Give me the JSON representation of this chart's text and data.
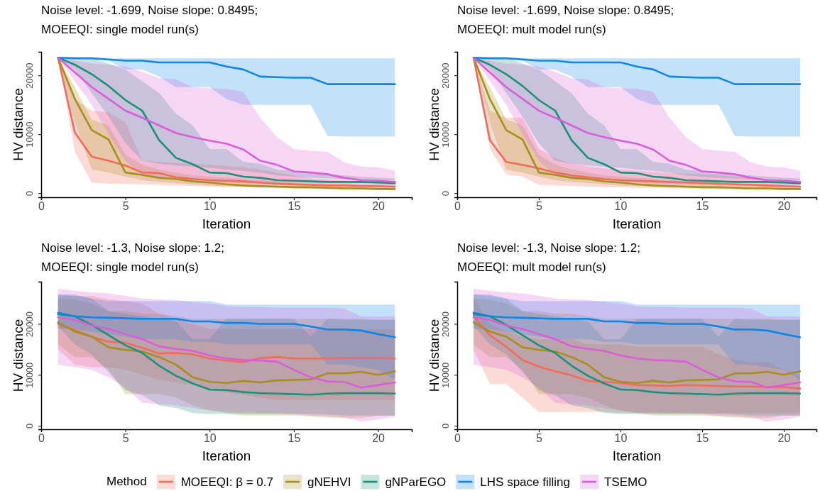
{
  "chart_data": [
    {
      "type": "line",
      "title": "Noise level: -1.699, Noise slope: 0.8495;\nMOEEQI: single model run(s)",
      "xlabel": "Iteration",
      "ylabel": "HV distance",
      "x": [
        1,
        2,
        3,
        4,
        5,
        6,
        7,
        8,
        9,
        10,
        11,
        12,
        13,
        14,
        15,
        16,
        17,
        18,
        19,
        20,
        21
      ],
      "xlim": [
        0,
        22
      ],
      "xticks": [
        0,
        5,
        10,
        15,
        20
      ],
      "ylim": [
        -700,
        24000
      ],
      "yticks": [
        0,
        10000,
        20000
      ],
      "series": [
        {
          "color": "#f26b5b",
          "values": [
            23000,
            10300,
            6200,
            5500,
            4700,
            3500,
            3400,
            2700,
            2400,
            2200,
            2100,
            2000,
            1800,
            1600,
            1500,
            1400,
            1300,
            1300,
            1200,
            1200,
            1100
          ],
          "lower": [
            23000,
            7000,
            1800,
            1600,
            1600,
            1500,
            1400,
            1300,
            1200,
            1100,
            1000,
            1000,
            900,
            900,
            850,
            800,
            800,
            750,
            700,
            700,
            700
          ],
          "upper": [
            23000,
            16000,
            14000,
            13700,
            12000,
            5500,
            5300,
            5100,
            5000,
            4800,
            4600,
            4400,
            4000,
            3500,
            3000,
            2500,
            2300,
            2100,
            2000,
            2000,
            1900
          ]
        },
        {
          "color": "#a58f1e",
          "values": [
            23000,
            16000,
            10700,
            9100,
            3500,
            3100,
            2600,
            2400,
            2000,
            1800,
            1500,
            1300,
            1200,
            1100,
            1000,
            1000,
            900,
            800,
            800,
            700,
            700
          ],
          "lower": [
            23000,
            12000,
            4000,
            3500,
            2800,
            2200,
            1900,
            1700,
            1500,
            1300,
            1200,
            1100,
            1000,
            900,
            800,
            700,
            650,
            600,
            550,
            500,
            500
          ],
          "upper": [
            23000,
            18000,
            12500,
            11500,
            6500,
            4800,
            4000,
            3500,
            3000,
            2800,
            2600,
            2400,
            2200,
            2000,
            1800,
            1600,
            1500,
            1400,
            1300,
            1200,
            1100
          ]
        },
        {
          "color": "#1b917a",
          "values": [
            23000,
            21800,
            20200,
            18200,
            15800,
            14000,
            9000,
            6000,
            4900,
            3500,
            3400,
            2800,
            2600,
            2200,
            2100,
            2000,
            1900,
            1900,
            1900,
            1800,
            1700
          ],
          "lower": [
            23000,
            21000,
            17000,
            13000,
            8500,
            5500,
            5000,
            4700,
            4500,
            4300,
            4000,
            3800,
            3500,
            3000,
            2800,
            2600,
            2500,
            2400,
            2300,
            2200,
            2200
          ],
          "upper": [
            23000,
            23000,
            23000,
            22000,
            21000,
            19000,
            17000,
            13500,
            11500,
            7500,
            7500,
            5300,
            5000,
            4000,
            3800,
            3500,
            3200,
            3000,
            2800,
            2600,
            2500
          ]
        },
        {
          "color": "#0f86e6",
          "values": [
            23000,
            22900,
            22900,
            22700,
            22500,
            22500,
            22200,
            22200,
            22200,
            22200,
            21500,
            21000,
            19800,
            19700,
            19600,
            19600,
            18500,
            18500,
            18500,
            18500,
            18500
          ],
          "lower": [
            23000,
            23000,
            22900,
            22500,
            21000,
            21000,
            19800,
            18000,
            18000,
            18000,
            16000,
            15000,
            15000,
            15000,
            15000,
            15000,
            9700,
            9600,
            9600,
            9600,
            9600
          ],
          "upper": [
            23000,
            22900,
            22900,
            22900,
            22900,
            22900,
            22900,
            22900,
            22900,
            22900,
            22900,
            22900,
            22900,
            22900,
            22900,
            22900,
            22900,
            22900,
            22900,
            22900,
            22900
          ]
        },
        {
          "color": "#d95ed8",
          "values": [
            23000,
            20500,
            18000,
            16000,
            14000,
            12800,
            11500,
            10200,
            9500,
            8900,
            8400,
            7400,
            5500,
            4800,
            3700,
            3500,
            3200,
            2600,
            2200,
            2100,
            1900
          ],
          "lower": [
            23000,
            19000,
            15000,
            10000,
            5500,
            3000,
            2600,
            2400,
            2200,
            2000,
            1800,
            1700,
            1600,
            1500,
            1500,
            1400,
            1400,
            1300,
            1300,
            1300,
            1300
          ],
          "upper": [
            23000,
            22500,
            22000,
            21800,
            21500,
            20600,
            19500,
            19300,
            18000,
            17800,
            17700,
            17200,
            12800,
            9500,
            7500,
            7200,
            7000,
            5200,
            4500,
            4400,
            3800
          ]
        }
      ]
    },
    {
      "type": "line",
      "title": "Noise level: -1.699, Noise slope: 0.8495;\nMOEEQI: mult model run(s)",
      "xlabel": "Iteration",
      "ylabel": "HV distance",
      "x": [
        1,
        2,
        3,
        4,
        5,
        6,
        7,
        8,
        9,
        10,
        11,
        12,
        13,
        14,
        15,
        16,
        17,
        18,
        19,
        20,
        21
      ],
      "xlim": [
        0,
        22
      ],
      "xticks": [
        0,
        5,
        10,
        15,
        20
      ],
      "ylim": [
        -700,
        24000
      ],
      "yticks": [
        0,
        10000,
        20000
      ],
      "series": [
        {
          "color": "#f26b5b",
          "values": [
            23000,
            9000,
            5300,
            4800,
            4200,
            3500,
            3000,
            2700,
            2400,
            2200,
            2100,
            2000,
            1900,
            1800,
            1700,
            1600,
            1500,
            1400,
            1300,
            1200,
            1100
          ],
          "lower": [
            23000,
            7500,
            3200,
            2800,
            1400,
            1300,
            1200,
            1100,
            1000,
            1000,
            900,
            900,
            850,
            800,
            800,
            750,
            700,
            700,
            700,
            650,
            650
          ],
          "upper": [
            23000,
            14000,
            12800,
            12800,
            7500,
            6000,
            5000,
            4500,
            4200,
            4000,
            3800,
            3600,
            3400,
            3300,
            3200,
            3000,
            2800,
            2500,
            2200,
            2100,
            2000
          ]
        },
        {
          "color": "#a58f1e",
          "values": [
            23000,
            16000,
            10700,
            9100,
            3500,
            3100,
            2600,
            2400,
            2000,
            1800,
            1500,
            1300,
            1200,
            1100,
            1000,
            1000,
            900,
            800,
            800,
            700,
            700
          ],
          "lower": [
            23000,
            12000,
            4000,
            3500,
            2800,
            2200,
            1900,
            1700,
            1500,
            1300,
            1200,
            1100,
            1000,
            900,
            800,
            700,
            650,
            600,
            550,
            500,
            500
          ],
          "upper": [
            23000,
            18000,
            12500,
            11500,
            6500,
            4800,
            4000,
            3500,
            3000,
            2800,
            2600,
            2400,
            2200,
            2000,
            1800,
            1600,
            1500,
            1400,
            1300,
            1200,
            1100
          ]
        },
        {
          "color": "#1b917a",
          "values": [
            23000,
            21800,
            20200,
            18200,
            15800,
            14000,
            9000,
            6000,
            4900,
            3500,
            3400,
            2800,
            2600,
            2200,
            2100,
            2000,
            1900,
            1900,
            1900,
            1800,
            1700
          ],
          "lower": [
            23000,
            21000,
            17000,
            13000,
            8500,
            5500,
            5000,
            4700,
            4500,
            4300,
            4000,
            3800,
            3500,
            3000,
            2800,
            2600,
            2500,
            2400,
            2300,
            2200,
            2200
          ],
          "upper": [
            23000,
            23000,
            23000,
            22000,
            21000,
            19000,
            17000,
            13500,
            11500,
            7500,
            7500,
            5300,
            5000,
            4000,
            3800,
            3500,
            3200,
            3000,
            2800,
            2600,
            2500
          ]
        },
        {
          "color": "#0f86e6",
          "values": [
            23000,
            22900,
            22900,
            22700,
            22500,
            22500,
            22200,
            22200,
            22200,
            22200,
            21500,
            21000,
            19800,
            19700,
            19600,
            19600,
            18500,
            18500,
            18500,
            18500,
            18500
          ],
          "lower": [
            23000,
            23000,
            22900,
            22500,
            21000,
            21000,
            19800,
            18000,
            18000,
            18000,
            16000,
            15000,
            15000,
            15000,
            15000,
            15000,
            9700,
            9600,
            9600,
            9600,
            9600
          ],
          "upper": [
            23000,
            22900,
            22900,
            22900,
            22900,
            22900,
            22900,
            22900,
            22900,
            22900,
            22900,
            22900,
            22900,
            22900,
            22900,
            22900,
            22900,
            22900,
            22900,
            22900,
            22900
          ]
        },
        {
          "color": "#d95ed8",
          "values": [
            23000,
            20500,
            18000,
            16000,
            14000,
            12800,
            11500,
            10200,
            9500,
            8900,
            8400,
            7400,
            5500,
            4800,
            3700,
            3500,
            3200,
            2600,
            2200,
            2100,
            1900
          ],
          "lower": [
            23000,
            19000,
            15000,
            10000,
            5500,
            3000,
            2600,
            2400,
            2200,
            2000,
            1800,
            1700,
            1600,
            1500,
            1500,
            1400,
            1400,
            1300,
            1300,
            1300,
            1300
          ],
          "upper": [
            23000,
            22500,
            22000,
            21800,
            21500,
            20600,
            19500,
            19300,
            18000,
            17800,
            17700,
            17200,
            12800,
            9500,
            7500,
            7200,
            7000,
            5200,
            4500,
            4400,
            3800
          ]
        }
      ]
    },
    {
      "type": "line",
      "title": "Noise level: -1.3, Noise slope: 1.2;\nMOEEQI: single model run(s)",
      "xlabel": "Iteration",
      "ylabel": "HV distance",
      "x": [
        1,
        2,
        3,
        4,
        5,
        6,
        7,
        8,
        9,
        10,
        11,
        12,
        13,
        14,
        15,
        16,
        17,
        18,
        19,
        20,
        21
      ],
      "xlim": [
        0,
        22
      ],
      "xticks": [
        0,
        5,
        10,
        15,
        20
      ],
      "ylim": [
        -700,
        28300
      ],
      "yticks": [
        0,
        10000,
        20000
      ],
      "series": [
        {
          "color": "#f26b5b",
          "values": [
            20000,
            18800,
            17500,
            16500,
            16300,
            15300,
            14200,
            14300,
            14000,
            13200,
            12800,
            12500,
            13300,
            13500,
            13200,
            13200,
            13200,
            13300,
            13300,
            13300,
            13200
          ],
          "lower": [
            15000,
            12000,
            11500,
            11500,
            11000,
            10000,
            9000,
            8500,
            8000,
            7000,
            6500,
            6000,
            5500,
            5000,
            5000,
            5000,
            5000,
            5000,
            5000,
            5000,
            5000
          ],
          "upper": [
            25500,
            25500,
            25500,
            24800,
            24500,
            24000,
            22000,
            21000,
            20000,
            19000,
            19000,
            19000,
            19000,
            19000,
            19000,
            19000,
            19000,
            19000,
            19000,
            19000,
            19000
          ]
        },
        {
          "color": "#a58f1e",
          "values": [
            20300,
            18500,
            17500,
            15400,
            14900,
            14600,
            13500,
            12000,
            9500,
            8600,
            8400,
            8800,
            8500,
            8900,
            9000,
            9100,
            10300,
            10300,
            10600,
            10000,
            10700
          ],
          "lower": [
            16000,
            13500,
            13500,
            11000,
            6200,
            6200,
            6200,
            5500,
            4000,
            3000,
            2500,
            2000,
            2000,
            2000,
            2000,
            1800,
            1600,
            1500,
            1500,
            2000,
            2000
          ],
          "upper": [
            25000,
            24800,
            24000,
            22500,
            22500,
            22000,
            22000,
            21500,
            21000,
            21000,
            21000,
            21000,
            21000,
            21000,
            21000,
            21000,
            21000,
            21000,
            21000,
            20800,
            20800
          ]
        },
        {
          "color": "#1b917a",
          "values": [
            21900,
            21500,
            19800,
            17800,
            15800,
            14300,
            11800,
            9800,
            8300,
            7100,
            7000,
            6600,
            6400,
            6300,
            6200,
            6100,
            6300,
            6400,
            6400,
            6400,
            6300
          ],
          "lower": [
            19500,
            16000,
            14000,
            10500,
            7000,
            6000,
            4000,
            3500,
            2500,
            2300,
            2300,
            2300,
            2300,
            2300,
            2300,
            2300,
            2200,
            2000,
            2000,
            2000,
            2000
          ],
          "upper": [
            25800,
            25800,
            25000,
            22500,
            22000,
            21500,
            21000,
            20500,
            17000,
            17000,
            21000,
            21000,
            21000,
            21000,
            21000,
            17500,
            21000,
            20800,
            20800,
            20800,
            20800
          ]
        },
        {
          "color": "#0f86e6",
          "values": [
            22200,
            21500,
            21300,
            21200,
            21100,
            21000,
            21000,
            21000,
            20500,
            20500,
            20200,
            20200,
            20000,
            20000,
            20000,
            19500,
            18900,
            18900,
            18700,
            18000,
            17400
          ],
          "lower": [
            19000,
            19000,
            18500,
            18000,
            17500,
            17000,
            17000,
            17000,
            16500,
            16500,
            16000,
            16000,
            16000,
            16000,
            16000,
            16000,
            12000,
            12000,
            11500,
            11000,
            9000
          ],
          "upper": [
            25800,
            25500,
            25000,
            24500,
            24500,
            24500,
            24500,
            24500,
            24500,
            24500,
            23800,
            23800,
            23800,
            23800,
            23800,
            23800,
            23800,
            23800,
            23800,
            23800,
            23800
          ]
        },
        {
          "color": "#d95ed8",
          "values": [
            21300,
            20800,
            19700,
            19000,
            18000,
            17000,
            15600,
            15100,
            14700,
            13800,
            13200,
            12900,
            12800,
            12600,
            11000,
            9500,
            8700,
            8600,
            7500,
            8000,
            8500
          ],
          "lower": [
            12000,
            11500,
            11000,
            9500,
            7500,
            4500,
            4200,
            4000,
            3500,
            3000,
            2700,
            2600,
            2500,
            2500,
            2300,
            2000,
            1800,
            1600,
            800,
            1200,
            1800
          ],
          "upper": [
            26900,
            26500,
            26200,
            26000,
            25500,
            25000,
            24800,
            24700,
            24300,
            24000,
            23500,
            23300,
            23300,
            23200,
            23200,
            23200,
            23200,
            23000,
            21500,
            21500,
            21500
          ]
        }
      ]
    },
    {
      "type": "line",
      "title": "Noise level: -1.3, Noise slope: 1.2;\nMOEEQI: mult model run(s)",
      "xlabel": "Iteration",
      "ylabel": "HV distance",
      "x": [
        1,
        2,
        3,
        4,
        5,
        6,
        7,
        8,
        9,
        10,
        11,
        12,
        13,
        14,
        15,
        16,
        17,
        18,
        19,
        20,
        21
      ],
      "xlim": [
        0,
        22
      ],
      "xticks": [
        0,
        5,
        10,
        15,
        20
      ],
      "ylim": [
        -700,
        28300
      ],
      "yticks": [
        0,
        10000,
        20000
      ],
      "legend": "bottom",
      "legend_title": "Method",
      "series": [
        {
          "name": "MOEEQI: β = 0.7",
          "color": "#f26b5b",
          "values": [
            21500,
            17800,
            15500,
            12900,
            11600,
            10700,
            9900,
            8800,
            8600,
            8400,
            8000,
            7900,
            7800,
            8000,
            7900,
            7800,
            7700,
            7700,
            7600,
            7600,
            7300
          ],
          "lower": [
            15000,
            8200,
            8200,
            5500,
            2700,
            2700,
            2700,
            2700,
            2700,
            2500,
            2500,
            2500,
            2500,
            2500,
            2500,
            2500,
            2500,
            2500,
            2500,
            2500,
            2500
          ],
          "upper": [
            25000,
            20000,
            18500,
            17500,
            17000,
            17000,
            17000,
            16000,
            16000,
            16000,
            15500,
            15500,
            15500,
            15500,
            15500,
            14000,
            13000,
            12500,
            12500,
            11000,
            10000
          ]
        },
        {
          "name": "gNEHVI",
          "color": "#a58f1e",
          "values": [
            20300,
            18500,
            17500,
            15400,
            14900,
            14600,
            13500,
            12000,
            9500,
            8600,
            8400,
            8800,
            8500,
            8900,
            9000,
            9100,
            10300,
            10300,
            10600,
            10000,
            10700
          ],
          "lower": [
            16000,
            13500,
            13500,
            11000,
            6200,
            6200,
            6200,
            5500,
            4000,
            3000,
            2500,
            2000,
            2000,
            2000,
            2000,
            1800,
            1600,
            1500,
            1500,
            2000,
            2000
          ],
          "upper": [
            25000,
            24800,
            24000,
            22500,
            22500,
            22000,
            22000,
            21500,
            21000,
            21000,
            21000,
            21000,
            21000,
            21000,
            21000,
            21000,
            21000,
            21000,
            21000,
            20800,
            20800
          ]
        },
        {
          "name": "gNParEGO",
          "color": "#1b917a",
          "values": [
            21900,
            21500,
            19800,
            17800,
            15800,
            14300,
            11800,
            9800,
            8300,
            7100,
            7000,
            6600,
            6400,
            6300,
            6200,
            6100,
            6300,
            6400,
            6400,
            6400,
            6300
          ],
          "lower": [
            19500,
            16000,
            14000,
            10500,
            7000,
            6000,
            4000,
            3500,
            2500,
            2300,
            2300,
            2300,
            2300,
            2300,
            2300,
            2300,
            2200,
            2000,
            2000,
            2000,
            2000
          ],
          "upper": [
            25800,
            25800,
            25000,
            22500,
            22000,
            21500,
            21000,
            20500,
            17000,
            17000,
            21000,
            21000,
            21000,
            21000,
            21000,
            17500,
            21000,
            20800,
            20800,
            20800,
            20800
          ]
        },
        {
          "name": "LHS space filling",
          "color": "#0f86e6",
          "values": [
            22200,
            21500,
            21300,
            21200,
            21100,
            21000,
            21000,
            21000,
            20500,
            20500,
            20200,
            20200,
            20000,
            20000,
            20000,
            19500,
            18900,
            18900,
            18700,
            18000,
            17400
          ],
          "lower": [
            19000,
            19000,
            18500,
            18000,
            17500,
            17000,
            17000,
            17000,
            16500,
            16500,
            16000,
            16000,
            16000,
            16000,
            16000,
            16000,
            12000,
            12000,
            11500,
            11000,
            9000
          ],
          "upper": [
            25800,
            25500,
            25000,
            24500,
            24500,
            24500,
            24500,
            24500,
            24500,
            24500,
            23800,
            23800,
            23800,
            23800,
            23800,
            23800,
            23800,
            23800,
            23800,
            23800,
            23800
          ]
        },
        {
          "name": "TSEMO",
          "color": "#d95ed8",
          "values": [
            21300,
            20800,
            19700,
            19000,
            18000,
            17000,
            15600,
            15100,
            14700,
            13800,
            13200,
            12900,
            12800,
            12600,
            11000,
            9500,
            8700,
            8600,
            7500,
            8000,
            8500
          ],
          "lower": [
            12000,
            11500,
            11000,
            9500,
            7500,
            4500,
            4200,
            4000,
            3500,
            3000,
            2700,
            2600,
            2500,
            2500,
            2300,
            2000,
            1800,
            1600,
            800,
            1200,
            1800
          ],
          "upper": [
            26900,
            26500,
            26200,
            26000,
            25500,
            25000,
            24800,
            24700,
            24300,
            24000,
            23500,
            23300,
            23300,
            23200,
            23200,
            23200,
            23200,
            23000,
            21500,
            21500,
            21500
          ]
        }
      ]
    }
  ]
}
